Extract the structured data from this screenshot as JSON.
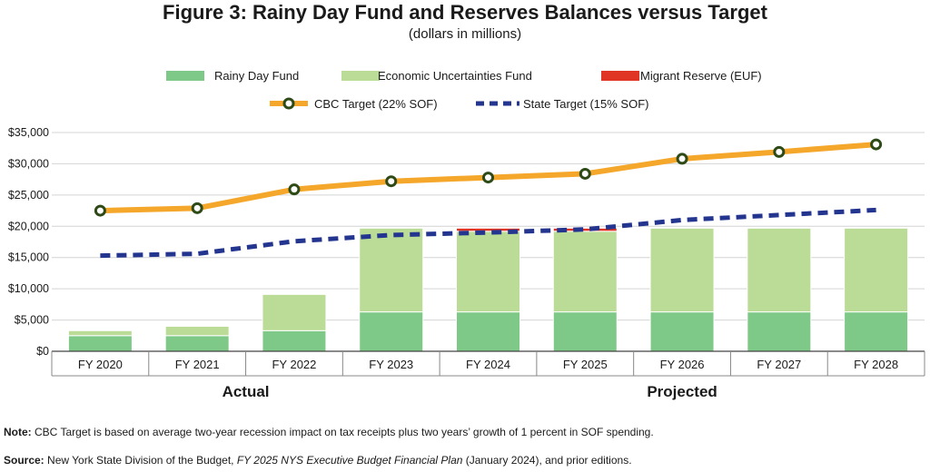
{
  "header": {
    "title": "Figure 3: Rainy Day Fund and Reserves Balances versus Target",
    "subtitle": "(dollars in millions)"
  },
  "chart_data": {
    "type": "bar",
    "categories": [
      "FY 2020",
      "FY 2021",
      "FY 2022",
      "FY 2023",
      "FY 2024",
      "FY 2025",
      "FY 2026",
      "FY 2027",
      "FY 2028"
    ],
    "groups": [
      {
        "label": "Actual",
        "categories": [
          "FY 2020",
          "FY 2021",
          "FY 2022",
          "FY 2023"
        ]
      },
      {
        "label": "Projected",
        "categories": [
          "FY 2024",
          "FY 2025",
          "FY 2026",
          "FY 2027",
          "FY 2028"
        ]
      }
    ],
    "stacked_series": [
      {
        "name": "Rainy Day Fund",
        "color": "#7ec987",
        "values": [
          2500,
          2500,
          3300,
          6300,
          6300,
          6300,
          6300,
          6300,
          6300
        ]
      },
      {
        "name": "Economic Uncertainties Fund",
        "color": "#bbdc97",
        "values": [
          800,
          1500,
          5800,
          13400,
          12900,
          12900,
          13400,
          13400,
          13400
        ]
      },
      {
        "name": "Migrant Reserve (EUF)",
        "color": "#e03424",
        "values": [
          0,
          0,
          0,
          0,
          500,
          500,
          0,
          0,
          0
        ]
      }
    ],
    "line_series": [
      {
        "name": "CBC Target (22% SOF)",
        "color": "#f4a72a",
        "marker": "circle",
        "values": [
          22500,
          22900,
          25900,
          27200,
          27800,
          28400,
          30800,
          31900,
          33100
        ]
      },
      {
        "name": "State Target (15% SOF)",
        "color": "#23358f",
        "style": "dashed",
        "values": [
          15300,
          15600,
          17600,
          18600,
          19000,
          19500,
          21000,
          21800,
          22600
        ]
      }
    ],
    "ylim": [
      0,
      35000
    ],
    "yticks": [
      0,
      5000,
      10000,
      15000,
      20000,
      25000,
      30000,
      35000
    ],
    "ytick_labels": [
      "$0",
      "$5,000",
      "$10,000",
      "$15,000",
      "$20,000",
      "$25,000",
      "$30,000",
      "$35,000"
    ],
    "grid": true,
    "legend_position": "top"
  },
  "footnotes": {
    "note_label": "Note:",
    "note_text": "CBC Target is based on average two-year recession impact on tax receipts plus two years’ growth of 1 percent in SOF spending.",
    "source_label": "Source:",
    "source_text_1": "New York State Division of the Budget, ",
    "source_text_italic": "FY 2025 NYS Executive Budget Financial Plan",
    "source_text_2": " (January 2024), and prior editions."
  }
}
